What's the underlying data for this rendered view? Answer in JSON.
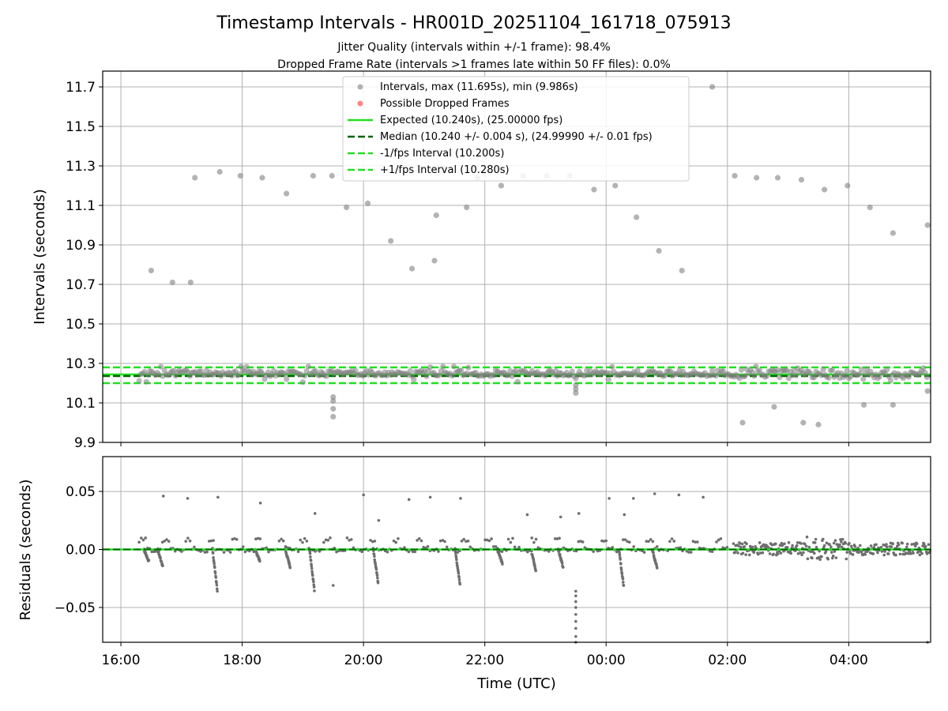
{
  "title": "Timestamp Intervals - HR001D_20251104_161718_075913",
  "subtitle_1": "Jitter Quality (intervals within +/-1 frame): 98.4%",
  "subtitle_2": "Dropped Frame Rate (intervals >1 frames late within 50 FF files): 0.0%",
  "colors": {
    "points": "#808080",
    "dropped": "#ff3333",
    "expected": "#22e022",
    "median": "#006400",
    "band": "#22e022",
    "grid": "#b0b0b0"
  },
  "chart_data": [
    {
      "type": "scatter",
      "ylabel": "Intervals (seconds)",
      "ylim": [
        9.9,
        11.78
      ],
      "yticks": [
        "9.9",
        "10.1",
        "10.3",
        "10.5",
        "10.7",
        "10.9",
        "11.1",
        "11.3",
        "11.5",
        "11.7"
      ],
      "grid": true,
      "legend": [
        "Intervals, max (11.695s), min (9.986s)",
        "Possible Dropped Frames",
        "Expected (10.240s), (25.00000 fps)",
        "Median (10.240 +/- 0.004 s), (24.99990 +/- 0.01 fps)",
        "-1/fps Interval (10.200s)",
        "+1/fps Interval (10.280s)"
      ],
      "legend_position": "top-center",
      "lines": {
        "expected": 10.24,
        "median": 10.24,
        "minus_one_fps": 10.2,
        "plus_one_fps": 10.28
      },
      "outliers": [
        [
          16.5,
          10.77
        ],
        [
          16.85,
          10.71
        ],
        [
          17.15,
          10.71
        ],
        [
          17.22,
          11.24
        ],
        [
          17.63,
          11.27
        ],
        [
          17.97,
          11.25
        ],
        [
          18.33,
          11.24
        ],
        [
          18.73,
          11.16
        ],
        [
          19.17,
          11.25
        ],
        [
          19.48,
          11.25
        ],
        [
          19.72,
          11.09
        ],
        [
          20.07,
          11.11
        ],
        [
          20.45,
          10.92
        ],
        [
          20.8,
          10.78
        ],
        [
          21.17,
          10.82
        ],
        [
          21.2,
          11.05
        ],
        [
          21.7,
          11.09
        ],
        [
          21.88,
          11.24
        ],
        [
          22.27,
          11.2
        ],
        [
          22.63,
          11.25
        ],
        [
          23.02,
          11.25
        ],
        [
          23.4,
          11.25
        ],
        [
          23.8,
          11.18
        ],
        [
          24.15,
          11.2
        ],
        [
          24.5,
          11.04
        ],
        [
          24.87,
          10.87
        ],
        [
          25.25,
          10.77
        ],
        [
          25.75,
          11.7
        ],
        [
          26.12,
          11.25
        ],
        [
          26.48,
          11.24
        ],
        [
          26.83,
          11.24
        ],
        [
          27.22,
          11.23
        ],
        [
          27.6,
          11.18
        ],
        [
          27.98,
          11.2
        ],
        [
          28.35,
          11.09
        ],
        [
          28.73,
          10.96
        ],
        [
          29.3,
          11.0
        ],
        [
          29.3,
          10.16
        ],
        [
          26.25,
          10.0
        ],
        [
          26.77,
          10.08
        ],
        [
          27.25,
          10.0
        ],
        [
          27.5,
          9.99
        ],
        [
          28.25,
          10.09
        ],
        [
          28.73,
          10.09
        ],
        [
          19.5,
          10.03
        ],
        [
          19.5,
          10.07
        ],
        [
          19.5,
          10.11
        ],
        [
          19.5,
          10.13
        ],
        [
          23.5,
          10.15
        ],
        [
          23.5,
          10.17
        ],
        [
          23.5,
          10.19
        ]
      ]
    },
    {
      "type": "scatter",
      "ylabel": "Residuals (seconds)",
      "xlabel": "Time (UTC)",
      "ylim": [
        -0.08,
        0.08
      ],
      "yticks": [
        "0.05",
        "0.00",
        "−0.05"
      ],
      "xticks": [
        "16:00",
        "18:00",
        "20:00",
        "22:00",
        "00:00",
        "02:00",
        "04:00"
      ],
      "grid": true,
      "outliers": [
        [
          16.7,
          0.046
        ],
        [
          17.1,
          0.044
        ],
        [
          17.6,
          0.045
        ],
        [
          18.3,
          0.04
        ],
        [
          19.2,
          0.031
        ],
        [
          20.0,
          0.047
        ],
        [
          20.25,
          0.025
        ],
        [
          20.75,
          0.043
        ],
        [
          21.1,
          0.045
        ],
        [
          21.6,
          0.044
        ],
        [
          22.7,
          0.03
        ],
        [
          23.25,
          0.028
        ],
        [
          23.55,
          0.031
        ],
        [
          24.05,
          0.044
        ],
        [
          24.3,
          0.03
        ],
        [
          24.45,
          0.044
        ],
        [
          24.8,
          0.048
        ],
        [
          25.2,
          0.047
        ],
        [
          25.6,
          0.045
        ],
        [
          19.5,
          -0.031
        ],
        [
          23.5,
          -0.036
        ],
        [
          23.5,
          -0.04
        ],
        [
          23.5,
          -0.045
        ],
        [
          23.5,
          -0.05
        ],
        [
          23.5,
          -0.056
        ],
        [
          23.5,
          -0.062
        ],
        [
          23.5,
          -0.068
        ],
        [
          23.5,
          -0.075
        ],
        [
          23.5,
          -0.08
        ],
        [
          29.3,
          -0.08
        ]
      ]
    }
  ]
}
